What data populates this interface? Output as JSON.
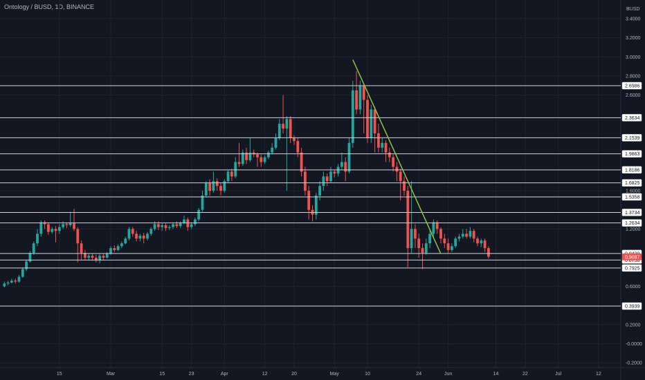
{
  "header": {
    "title": "Ontology / BUSD, 1D, BINANCE",
    "currency": "BUSD"
  },
  "chart_data": {
    "type": "candlestick",
    "ylim": [
      -0.22,
      3.45
    ],
    "y_ticks": [
      "3.4000",
      "3.2000",
      "3.0000",
      "2.8000",
      "2.6000",
      "1.6000",
      "1.2000",
      "0.6000",
      "0.2000",
      "-0.0000",
      "-0.2000"
    ],
    "x_ticks": [
      {
        "label": "15",
        "day": 15
      },
      {
        "label": "Mar",
        "day": 29
      },
      {
        "label": "15",
        "day": 43
      },
      {
        "label": "23",
        "day": 51
      },
      {
        "label": "Apr",
        "day": 60
      },
      {
        "label": "12",
        "day": 71
      },
      {
        "label": "20",
        "day": 79
      },
      {
        "label": "May",
        "day": 90
      },
      {
        "label": "10",
        "day": 99
      },
      {
        "label": "24",
        "day": 113
      },
      {
        "label": "Jun",
        "day": 121
      },
      {
        "label": "14",
        "day": 134
      },
      {
        "label": "22",
        "day": 142
      },
      {
        "label": "Jul",
        "day": 151
      },
      {
        "label": "12",
        "day": 162
      }
    ],
    "horizontal_levels": [
      "2.6986",
      "2.3634",
      "2.1539",
      "1.9863",
      "1.8186",
      "1.6825",
      "1.5358",
      "1.3734",
      "1.2634",
      "0.9439",
      "0.8758",
      "0.7925",
      "0.3939"
    ],
    "current_price": "0.9087",
    "trendline": {
      "from": {
        "day": 95,
        "price": 2.97
      },
      "to": {
        "day": 119,
        "price": 0.94
      }
    },
    "candles": [
      [
        0,
        0.6,
        0.63,
        0.65,
        0.59
      ],
      [
        1,
        0.63,
        0.64,
        0.66,
        0.61
      ],
      [
        2,
        0.64,
        0.66,
        0.68,
        0.63
      ],
      [
        3,
        0.66,
        0.65,
        0.68,
        0.63
      ],
      [
        4,
        0.65,
        0.7,
        0.72,
        0.64
      ],
      [
        5,
        0.7,
        0.78,
        0.8,
        0.69
      ],
      [
        6,
        0.78,
        0.86,
        0.88,
        0.76
      ],
      [
        7,
        0.86,
        0.95,
        0.97,
        0.85
      ],
      [
        8,
        0.95,
        1.05,
        1.07,
        0.93
      ],
      [
        9,
        1.05,
        1.15,
        1.2,
        1.02
      ],
      [
        10,
        1.15,
        1.27,
        1.29,
        1.12
      ],
      [
        11,
        1.27,
        1.25,
        1.29,
        1.2
      ],
      [
        12,
        1.25,
        1.17,
        1.27,
        1.14
      ],
      [
        13,
        1.17,
        1.2,
        1.22,
        1.15
      ],
      [
        14,
        1.2,
        1.18,
        1.23,
        1.06
      ],
      [
        15,
        1.18,
        1.22,
        1.25,
        1.15
      ],
      [
        16,
        1.22,
        1.25,
        1.28,
        1.2
      ],
      [
        17,
        1.25,
        1.24,
        1.27,
        1.21
      ],
      [
        18,
        1.24,
        1.26,
        1.38,
        1.22
      ],
      [
        19,
        1.26,
        1.2,
        1.41,
        1.18
      ],
      [
        20,
        1.2,
        1.05,
        1.22,
        0.85
      ],
      [
        21,
        1.05,
        0.95,
        1.08,
        0.88
      ],
      [
        22,
        0.95,
        0.9,
        0.98,
        0.87
      ],
      [
        23,
        0.9,
        0.92,
        0.94,
        0.87
      ],
      [
        24,
        0.92,
        0.9,
        0.94,
        0.87
      ],
      [
        25,
        0.9,
        0.87,
        0.93,
        0.85
      ],
      [
        26,
        0.87,
        0.92,
        0.94,
        0.84
      ],
      [
        27,
        0.92,
        0.9,
        0.94,
        0.88
      ],
      [
        28,
        0.9,
        0.94,
        0.96,
        0.89
      ],
      [
        29,
        0.94,
        1.0,
        1.02,
        0.93
      ],
      [
        30,
        1.0,
        0.98,
        1.03,
        0.96
      ],
      [
        31,
        0.98,
        1.02,
        1.04,
        0.97
      ],
      [
        32,
        1.02,
        1.05,
        1.07,
        1.0
      ],
      [
        33,
        1.05,
        1.1,
        1.12,
        1.04
      ],
      [
        34,
        1.1,
        1.2,
        1.22,
        1.08
      ],
      [
        35,
        1.2,
        1.15,
        1.22,
        1.12
      ],
      [
        36,
        1.15,
        1.1,
        1.18,
        1.07
      ],
      [
        37,
        1.1,
        1.13,
        1.15,
        1.07
      ],
      [
        38,
        1.13,
        1.1,
        1.16,
        1.05
      ],
      [
        39,
        1.1,
        1.15,
        1.17,
        1.08
      ],
      [
        40,
        1.15,
        1.2,
        1.22,
        1.13
      ],
      [
        41,
        1.2,
        1.25,
        1.28,
        1.18
      ],
      [
        42,
        1.25,
        1.22,
        1.28,
        1.19
      ],
      [
        43,
        1.22,
        1.24,
        1.26,
        1.18
      ],
      [
        44,
        1.24,
        1.21,
        1.26,
        1.18
      ],
      [
        45,
        1.21,
        1.22,
        1.24,
        1.19
      ],
      [
        46,
        1.22,
        1.25,
        1.27,
        1.2
      ],
      [
        47,
        1.25,
        1.23,
        1.28,
        1.21
      ],
      [
        48,
        1.23,
        1.26,
        1.28,
        1.21
      ],
      [
        49,
        1.26,
        1.3,
        1.34,
        1.25
      ],
      [
        50,
        1.3,
        1.22,
        1.32,
        1.18
      ],
      [
        51,
        1.22,
        1.25,
        1.27,
        1.2
      ],
      [
        52,
        1.25,
        1.3,
        1.32,
        1.23
      ],
      [
        53,
        1.3,
        1.4,
        1.42,
        1.28
      ],
      [
        54,
        1.4,
        1.55,
        1.6,
        1.38
      ],
      [
        55,
        1.55,
        1.68,
        1.7,
        1.53
      ],
      [
        56,
        1.68,
        1.6,
        1.72,
        1.55
      ],
      [
        57,
        1.6,
        1.7,
        1.8,
        1.58
      ],
      [
        58,
        1.7,
        1.65,
        1.73,
        1.6
      ],
      [
        59,
        1.65,
        1.6,
        1.68,
        1.55
      ],
      [
        60,
        1.6,
        1.7,
        1.72,
        1.58
      ],
      [
        61,
        1.7,
        1.8,
        1.82,
        1.68
      ],
      [
        62,
        1.8,
        1.75,
        1.83,
        1.7
      ],
      [
        63,
        1.75,
        1.9,
        1.95,
        1.73
      ],
      [
        64,
        1.9,
        1.88,
        2.1,
        1.85
      ],
      [
        65,
        1.88,
        2.0,
        2.03,
        1.86
      ],
      [
        66,
        2.0,
        1.92,
        2.05,
        1.88
      ],
      [
        67,
        1.92,
        2.0,
        2.15,
        1.9
      ],
      [
        68,
        2.0,
        1.98,
        2.03,
        1.95
      ],
      [
        69,
        1.98,
        1.95,
        2.0,
        1.85
      ],
      [
        70,
        1.95,
        1.9,
        1.98,
        1.85
      ],
      [
        71,
        1.9,
        1.95,
        1.97,
        1.88
      ],
      [
        72,
        1.95,
        2.0,
        2.02,
        1.93
      ],
      [
        73,
        2.0,
        2.05,
        2.1,
        1.98
      ],
      [
        74,
        2.05,
        2.15,
        2.2,
        2.03
      ],
      [
        75,
        2.15,
        2.3,
        2.35,
        2.13
      ],
      [
        76,
        2.3,
        2.25,
        2.6,
        2.2
      ],
      [
        77,
        2.25,
        2.35,
        2.38,
        1.6
      ],
      [
        78,
        2.35,
        2.15,
        2.38,
        2.1
      ],
      [
        79,
        2.15,
        2.12,
        2.18,
        2.08
      ],
      [
        80,
        2.12,
        2.0,
        2.15,
        1.95
      ],
      [
        81,
        2.0,
        1.8,
        2.05,
        1.75
      ],
      [
        82,
        1.8,
        1.6,
        1.85,
        1.55
      ],
      [
        83,
        1.6,
        1.4,
        1.65,
        1.3
      ],
      [
        84,
        1.4,
        1.35,
        1.45,
        1.28
      ],
      [
        85,
        1.35,
        1.55,
        1.58,
        1.3
      ],
      [
        86,
        1.55,
        1.65,
        1.7,
        1.5
      ],
      [
        87,
        1.65,
        1.75,
        1.8,
        1.6
      ],
      [
        88,
        1.75,
        1.7,
        1.78,
        1.65
      ],
      [
        89,
        1.7,
        1.8,
        1.85,
        1.68
      ],
      [
        90,
        1.8,
        1.78,
        1.82,
        1.74
      ],
      [
        91,
        1.78,
        1.85,
        1.88,
        1.75
      ],
      [
        92,
        1.85,
        1.9,
        2.0,
        1.82
      ],
      [
        93,
        1.9,
        1.8,
        1.95,
        1.7
      ],
      [
        94,
        1.8,
        2.1,
        2.15,
        1.78
      ],
      [
        95,
        2.1,
        2.65,
        2.75,
        2.05
      ],
      [
        96,
        2.65,
        2.45,
        2.85,
        2.4
      ],
      [
        97,
        2.45,
        2.7,
        2.75,
        2.4
      ],
      [
        98,
        2.7,
        2.55,
        2.72,
        2.2
      ],
      [
        99,
        2.55,
        2.15,
        2.6,
        2.1
      ],
      [
        100,
        2.15,
        2.45,
        2.5,
        2.1
      ],
      [
        101,
        2.45,
        2.2,
        2.48,
        2.0
      ],
      [
        102,
        2.2,
        2.05,
        2.3,
        2.0
      ],
      [
        103,
        2.05,
        2.1,
        2.15,
        2.0
      ],
      [
        104,
        2.1,
        2.0,
        2.13,
        1.9
      ],
      [
        105,
        2.0,
        1.95,
        2.05,
        1.9
      ],
      [
        106,
        1.95,
        1.85,
        1.98,
        1.8
      ],
      [
        107,
        1.85,
        1.8,
        1.9,
        1.7
      ],
      [
        108,
        1.8,
        1.7,
        1.83,
        1.5
      ],
      [
        109,
        1.7,
        1.6,
        1.75,
        1.55
      ],
      [
        110,
        1.6,
        1.0,
        1.65,
        0.8
      ],
      [
        111,
        1.0,
        1.2,
        1.7,
        0.95
      ],
      [
        112,
        1.2,
        1.1,
        1.25,
        1.0
      ],
      [
        113,
        1.1,
        1.0,
        1.15,
        0.9
      ],
      [
        114,
        1.0,
        0.95,
        1.05,
        0.78
      ],
      [
        115,
        0.95,
        1.05,
        1.1,
        0.93
      ],
      [
        116,
        1.05,
        1.15,
        1.2,
        1.0
      ],
      [
        117,
        1.15,
        1.27,
        1.3,
        1.1
      ],
      [
        118,
        1.27,
        1.2,
        1.29,
        1.15
      ],
      [
        119,
        1.2,
        1.1,
        1.22,
        1.05
      ],
      [
        120,
        1.1,
        1.05,
        1.15,
        1.0
      ],
      [
        121,
        1.05,
        0.98,
        1.1,
        0.95
      ],
      [
        122,
        0.98,
        1.02,
        1.05,
        0.96
      ],
      [
        123,
        1.02,
        1.1,
        1.12,
        1.0
      ],
      [
        124,
        1.1,
        1.12,
        1.15,
        1.07
      ],
      [
        125,
        1.12,
        1.15,
        1.2,
        1.1
      ],
      [
        126,
        1.15,
        1.12,
        1.2,
        1.1
      ],
      [
        127,
        1.12,
        1.18,
        1.22,
        1.1
      ],
      [
        128,
        1.18,
        1.1,
        1.2,
        1.06
      ],
      [
        129,
        1.1,
        1.05,
        1.12,
        1.02
      ],
      [
        130,
        1.05,
        1.08,
        1.1,
        1.01
      ],
      [
        131,
        1.08,
        1.0,
        1.1,
        0.96
      ],
      [
        132,
        1.0,
        0.91,
        1.02,
        0.89
      ]
    ]
  },
  "colors": {
    "background": "#131722",
    "up": "#26a69a",
    "down": "#ef5350",
    "level_line": "#d1d4dc",
    "trendline": "#8bc34a",
    "axis_text": "#b2b5be"
  }
}
